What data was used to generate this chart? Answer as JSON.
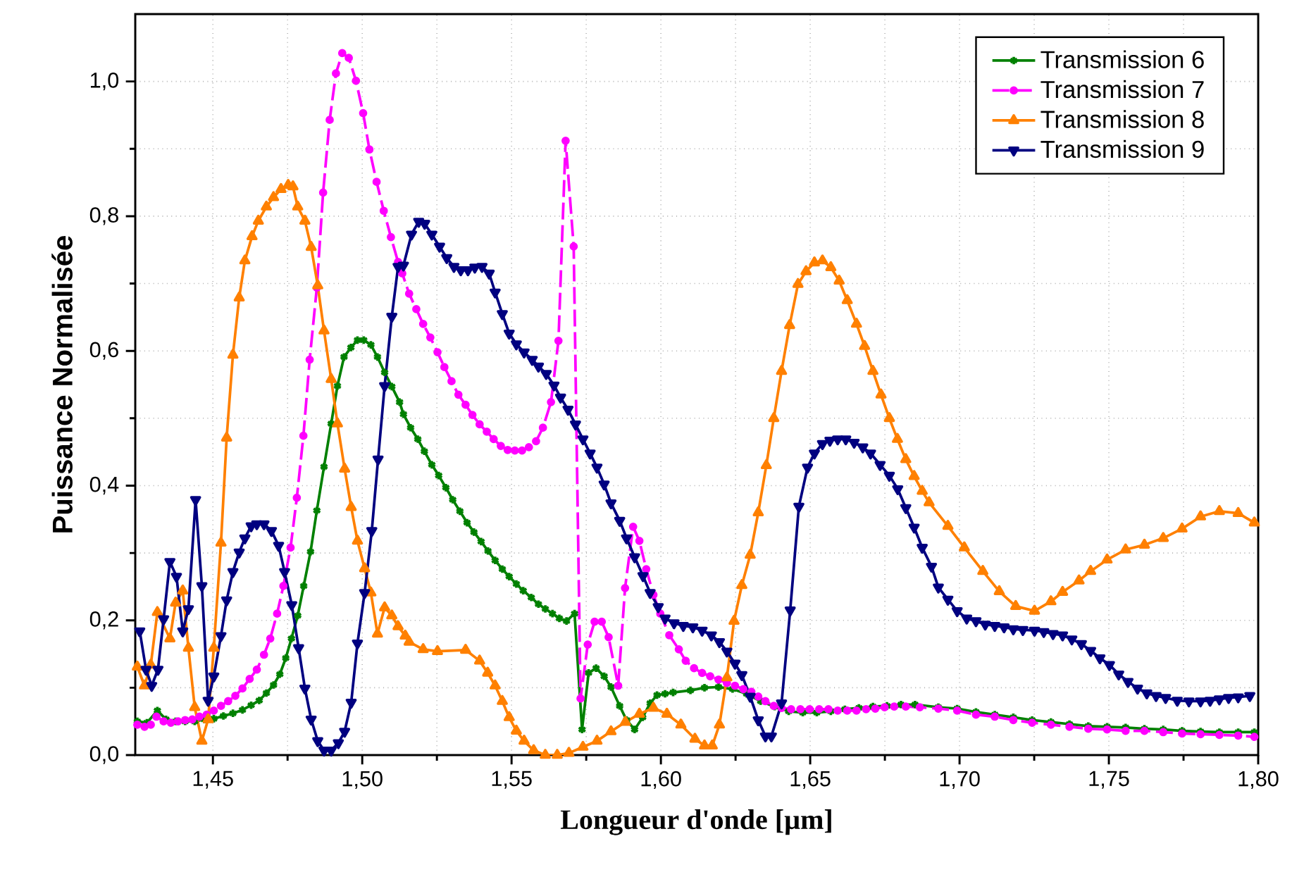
{
  "chart_data": {
    "type": "line",
    "xlabel": "Longueur d'onde [µm]",
    "ylabel": "Puissance Normalisée",
    "xlim": [
      1.424,
      1.8
    ],
    "ylim": [
      0,
      1.1
    ],
    "xticks": [
      {
        "value": 1.45,
        "label": "1,45"
      },
      {
        "value": 1.5,
        "label": "1,50"
      },
      {
        "value": 1.55,
        "label": "1,55"
      },
      {
        "value": 1.6,
        "label": "1,60"
      },
      {
        "value": 1.65,
        "label": "1,65"
      },
      {
        "value": 1.7,
        "label": "1,70"
      },
      {
        "value": 1.75,
        "label": "1,75"
      },
      {
        "value": 1.8,
        "label": "1,80"
      }
    ],
    "yticks": [
      {
        "value": 0,
        "label": "0,0"
      },
      {
        "value": 0.2,
        "label": "0,2"
      },
      {
        "value": 0.4,
        "label": "0,4"
      },
      {
        "value": 0.6,
        "label": "0,6"
      },
      {
        "value": 0.8,
        "label": "0,8"
      },
      {
        "value": 1.0,
        "label": "1,0"
      }
    ],
    "grid": true,
    "legend": "top right",
    "series": [
      {
        "name": "Transmission 6",
        "color": "#008000",
        "marker": "cross",
        "line_style": "solid",
        "x": [
          1.4247,
          1.4279,
          1.4314,
          1.4343,
          1.4375,
          1.4407,
          1.4439,
          1.4471,
          1.4503,
          1.4535,
          1.4567,
          1.4599,
          1.4628,
          1.4655,
          1.4679,
          1.4703,
          1.4724,
          1.4744,
          1.4763,
          1.4784,
          1.4804,
          1.4827,
          1.4848,
          1.4872,
          1.4896,
          1.4917,
          1.4939,
          1.4962,
          1.4984,
          1.5005,
          1.5029,
          1.5051,
          1.5075,
          1.5099,
          1.5125,
          1.5138,
          1.5162,
          1.5186,
          1.5208,
          1.5233,
          1.5256,
          1.528,
          1.5303,
          1.5327,
          1.5351,
          1.5374,
          1.5398,
          1.5421,
          1.5445,
          1.5469,
          1.5492,
          1.5516,
          1.5539,
          1.5566,
          1.559,
          1.5613,
          1.5637,
          1.566,
          1.5684,
          1.5711,
          1.5736,
          1.5758,
          1.5783,
          1.581,
          1.5833,
          1.5862,
          1.5885,
          1.5912,
          1.5939,
          1.5964,
          1.5987,
          1.6014,
          1.6041,
          1.6099,
          1.6146,
          1.6193,
          1.624,
          1.6287,
          1.6334,
          1.6381,
          1.6428,
          1.6475,
          1.6522,
          1.6569,
          1.6616,
          1.6663,
          1.671,
          1.6757,
          1.6804,
          1.6851,
          1.6929,
          1.6992,
          1.7055,
          1.7118,
          1.718,
          1.7243,
          1.7306,
          1.7368,
          1.7431,
          1.7494,
          1.7556,
          1.7619,
          1.7682,
          1.7745,
          1.7807,
          1.787,
          1.7933,
          1.7987
        ],
        "values": [
          0.05,
          0.048,
          0.066,
          0.053,
          0.05,
          0.05,
          0.05,
          0.053,
          0.054,
          0.058,
          0.062,
          0.067,
          0.074,
          0.081,
          0.092,
          0.104,
          0.12,
          0.144,
          0.173,
          0.207,
          0.251,
          0.302,
          0.363,
          0.428,
          0.492,
          0.548,
          0.591,
          0.605,
          0.616,
          0.616,
          0.609,
          0.591,
          0.568,
          0.547,
          0.524,
          0.506,
          0.486,
          0.469,
          0.451,
          0.431,
          0.415,
          0.397,
          0.379,
          0.362,
          0.345,
          0.331,
          0.317,
          0.303,
          0.289,
          0.276,
          0.265,
          0.254,
          0.244,
          0.234,
          0.224,
          0.217,
          0.21,
          0.203,
          0.199,
          0.21,
          0.038,
          0.122,
          0.129,
          0.117,
          0.101,
          0.073,
          0.052,
          0.038,
          0.056,
          0.077,
          0.089,
          0.091,
          0.093,
          0.096,
          0.1,
          0.101,
          0.098,
          0.091,
          0.08,
          0.072,
          0.065,
          0.063,
          0.063,
          0.065,
          0.068,
          0.07,
          0.072,
          0.073,
          0.075,
          0.075,
          0.071,
          0.069,
          0.064,
          0.06,
          0.056,
          0.052,
          0.049,
          0.046,
          0.043,
          0.042,
          0.041,
          0.039,
          0.038,
          0.036,
          0.035,
          0.034,
          0.034,
          0.034
        ]
      },
      {
        "name": "Transmission 7",
        "color": "#ff00ff",
        "marker": "circle",
        "line_style": "dashed",
        "x": [
          1.4247,
          1.4271,
          1.4292,
          1.4311,
          1.4335,
          1.4359,
          1.4383,
          1.4407,
          1.4431,
          1.4455,
          1.4479,
          1.4503,
          1.4527,
          1.4551,
          1.4575,
          1.4599,
          1.4623,
          1.4647,
          1.4671,
          1.4692,
          1.4715,
          1.4736,
          1.476,
          1.4781,
          1.4803,
          1.4824,
          1.4848,
          1.4869,
          1.4891,
          1.4912,
          1.4933,
          1.4955,
          1.4979,
          1.5003,
          1.5024,
          1.5048,
          1.5072,
          1.5096,
          1.512,
          1.5134,
          1.5157,
          1.5181,
          1.5204,
          1.5228,
          1.5252,
          1.5275,
          1.5299,
          1.5322,
          1.5346,
          1.5369,
          1.5393,
          1.5417,
          1.544,
          1.5464,
          1.5487,
          1.5511,
          1.5535,
          1.5558,
          1.5582,
          1.5605,
          1.5632,
          1.5657,
          1.5681,
          1.5708,
          1.5731,
          1.5755,
          1.5778,
          1.5802,
          1.5825,
          1.5857,
          1.588,
          1.5907,
          1.5928,
          1.5951,
          1.5975,
          1.5998,
          1.6028,
          1.606,
          1.6083,
          1.6111,
          1.6138,
          1.6165,
          1.6193,
          1.6221,
          1.6248,
          1.6276,
          1.6303,
          1.6326,
          1.635,
          1.6378,
          1.6404,
          1.6436,
          1.6467,
          1.6498,
          1.653,
          1.6561,
          1.6592,
          1.6624,
          1.6655,
          1.6687,
          1.6718,
          1.6749,
          1.6781,
          1.682,
          1.6867,
          1.6929,
          1.6992,
          1.7055,
          1.7118,
          1.718,
          1.7243,
          1.7306,
          1.7368,
          1.7431,
          1.7494,
          1.7556,
          1.7619,
          1.7682,
          1.7745,
          1.7807,
          1.787,
          1.7933,
          1.7987
        ],
        "values": [
          0.045,
          0.042,
          0.045,
          0.057,
          0.05,
          0.048,
          0.05,
          0.052,
          0.053,
          0.057,
          0.06,
          0.066,
          0.073,
          0.08,
          0.088,
          0.099,
          0.113,
          0.127,
          0.149,
          0.173,
          0.21,
          0.251,
          0.308,
          0.382,
          0.474,
          0.587,
          0.694,
          0.835,
          0.943,
          1.012,
          1.042,
          1.035,
          1.001,
          0.953,
          0.899,
          0.851,
          0.808,
          0.769,
          0.732,
          0.715,
          0.685,
          0.662,
          0.64,
          0.62,
          0.598,
          0.576,
          0.555,
          0.535,
          0.52,
          0.505,
          0.491,
          0.48,
          0.469,
          0.459,
          0.453,
          0.452,
          0.452,
          0.457,
          0.466,
          0.486,
          0.524,
          0.615,
          0.912,
          0.755,
          0.084,
          0.164,
          0.198,
          0.198,
          0.175,
          0.103,
          0.248,
          0.339,
          0.318,
          0.276,
          0.238,
          0.21,
          0.178,
          0.157,
          0.14,
          0.129,
          0.122,
          0.117,
          0.112,
          0.107,
          0.103,
          0.098,
          0.094,
          0.087,
          0.08,
          0.073,
          0.07,
          0.068,
          0.068,
          0.068,
          0.068,
          0.068,
          0.066,
          0.066,
          0.066,
          0.068,
          0.069,
          0.071,
          0.072,
          0.072,
          0.071,
          0.069,
          0.066,
          0.06,
          0.057,
          0.052,
          0.048,
          0.045,
          0.042,
          0.039,
          0.038,
          0.036,
          0.036,
          0.034,
          0.032,
          0.031,
          0.03,
          0.029,
          0.027
        ]
      },
      {
        "name": "Transmission 8",
        "color": "#ff8000",
        "marker": "triangle",
        "line_style": "solid",
        "x": [
          1.4247,
          1.4271,
          1.4292,
          1.4314,
          1.4356,
          1.4375,
          1.4399,
          1.4418,
          1.4439,
          1.4463,
          1.4484,
          1.4503,
          1.4527,
          1.4546,
          1.4567,
          1.4588,
          1.4607,
          1.4631,
          1.4652,
          1.4679,
          1.4703,
          1.4728,
          1.4752,
          1.4768,
          1.4784,
          1.4808,
          1.4829,
          1.4851,
          1.4872,
          1.4896,
          1.4917,
          1.4941,
          1.4963,
          1.4984,
          1.5008,
          1.5029,
          1.5051,
          1.5075,
          1.5099,
          1.512,
          1.5144,
          1.5157,
          1.5204,
          1.5252,
          1.5346,
          1.5393,
          1.542,
          1.5445,
          1.5469,
          1.5492,
          1.5516,
          1.5542,
          1.5574,
          1.5613,
          1.5653,
          1.5692,
          1.5739,
          1.5786,
          1.5833,
          1.5881,
          1.5928,
          1.5975,
          1.602,
          1.6067,
          1.6114,
          1.6146,
          1.6172,
          1.6196,
          1.6221,
          1.6245,
          1.6271,
          1.6299,
          1.6326,
          1.6353,
          1.6378,
          1.6404,
          1.6431,
          1.6459,
          1.6486,
          1.6514,
          1.6541,
          1.6569,
          1.6597,
          1.6624,
          1.6655,
          1.6682,
          1.671,
          1.6737,
          1.6765,
          1.6792,
          1.682,
          1.6848,
          1.6875,
          1.6898,
          1.6961,
          1.7016,
          1.7078,
          1.7133,
          1.7188,
          1.7251,
          1.7306,
          1.7345,
          1.74,
          1.7439,
          1.7494,
          1.7556,
          1.7619,
          1.7682,
          1.7745,
          1.7807,
          1.787,
          1.7933,
          1.7987
        ],
        "values": [
          0.131,
          0.103,
          0.134,
          0.212,
          0.173,
          0.226,
          0.244,
          0.159,
          0.071,
          0.021,
          0.053,
          0.159,
          0.315,
          0.471,
          0.594,
          0.679,
          0.734,
          0.77,
          0.793,
          0.814,
          0.828,
          0.84,
          0.846,
          0.844,
          0.814,
          0.793,
          0.754,
          0.697,
          0.63,
          0.558,
          0.492,
          0.425,
          0.368,
          0.318,
          0.277,
          0.241,
          0.18,
          0.219,
          0.207,
          0.191,
          0.177,
          0.168,
          0.157,
          0.154,
          0.156,
          0.14,
          0.122,
          0.103,
          0.08,
          0.056,
          0.036,
          0.021,
          0.007,
          0.0,
          0.0,
          0.003,
          0.012,
          0.021,
          0.035,
          0.049,
          0.061,
          0.07,
          0.061,
          0.045,
          0.024,
          0.014,
          0.014,
          0.045,
          0.115,
          0.199,
          0.252,
          0.297,
          0.36,
          0.43,
          0.5,
          0.57,
          0.638,
          0.699,
          0.718,
          0.731,
          0.734,
          0.724,
          0.704,
          0.675,
          0.64,
          0.607,
          0.57,
          0.535,
          0.5,
          0.469,
          0.439,
          0.414,
          0.392,
          0.375,
          0.34,
          0.308,
          0.273,
          0.243,
          0.221,
          0.214,
          0.228,
          0.242,
          0.259,
          0.273,
          0.29,
          0.305,
          0.312,
          0.322,
          0.336,
          0.354,
          0.362,
          0.359,
          0.345
        ]
      },
      {
        "name": "Transmission 9",
        "color": "#000080",
        "marker": "triangle-down",
        "line_style": "solid",
        "x": [
          1.4255,
          1.4276,
          1.4295,
          1.4316,
          1.4335,
          1.4356,
          1.4378,
          1.4399,
          1.4418,
          1.4442,
          1.4463,
          1.4484,
          1.4503,
          1.4527,
          1.4546,
          1.4567,
          1.4588,
          1.4607,
          1.4628,
          1.4647,
          1.4671,
          1.4696,
          1.472,
          1.474,
          1.4764,
          1.4787,
          1.4808,
          1.4829,
          1.4851,
          1.4872,
          1.4896,
          1.492,
          1.4941,
          1.4963,
          1.4984,
          1.5008,
          1.5032,
          1.5053,
          1.5075,
          1.5099,
          1.512,
          1.5138,
          1.5165,
          1.5189,
          1.5209,
          1.5233,
          1.5259,
          1.5283,
          1.5307,
          1.533,
          1.5354,
          1.5377,
          1.5401,
          1.5425,
          1.5445,
          1.5469,
          1.5492,
          1.5516,
          1.5542,
          1.5569,
          1.559,
          1.5616,
          1.5642,
          1.5664,
          1.5689,
          1.5714,
          1.5739,
          1.5763,
          1.5786,
          1.581,
          1.5833,
          1.5862,
          1.5885,
          1.5912,
          1.594,
          1.5964,
          1.5991,
          1.6014,
          1.6044,
          1.6075,
          1.6107,
          1.6138,
          1.6169,
          1.6196,
          1.6221,
          1.6248,
          1.6271,
          1.6299,
          1.6326,
          1.635,
          1.637,
          1.6404,
          1.6433,
          1.6462,
          1.6491,
          1.6514,
          1.6541,
          1.6566,
          1.6592,
          1.6619,
          1.6647,
          1.6676,
          1.6702,
          1.6734,
          1.6765,
          1.6793,
          1.682,
          1.6848,
          1.6875,
          1.6906,
          1.6929,
          1.6961,
          1.6992,
          1.7024,
          1.7055,
          1.7086,
          1.7118,
          1.7149,
          1.718,
          1.7212,
          1.7251,
          1.7282,
          1.7313,
          1.7345,
          1.7376,
          1.7408,
          1.7439,
          1.747,
          1.7502,
          1.7533,
          1.7564,
          1.7596,
          1.7627,
          1.7658,
          1.769,
          1.7729,
          1.7768,
          1.7807,
          1.7839,
          1.787,
          1.7901,
          1.7933,
          1.7972
        ],
        "values": [
          0.184,
          0.127,
          0.103,
          0.127,
          0.202,
          0.287,
          0.265,
          0.184,
          0.217,
          0.379,
          0.251,
          0.081,
          0.117,
          0.177,
          0.23,
          0.272,
          0.301,
          0.322,
          0.34,
          0.343,
          0.343,
          0.333,
          0.311,
          0.272,
          0.223,
          0.159,
          0.099,
          0.053,
          0.021,
          0.007,
          0.007,
          0.018,
          0.035,
          0.078,
          0.166,
          0.241,
          0.333,
          0.439,
          0.548,
          0.651,
          0.725,
          0.727,
          0.773,
          0.792,
          0.789,
          0.773,
          0.755,
          0.738,
          0.725,
          0.72,
          0.72,
          0.724,
          0.725,
          0.715,
          0.687,
          0.655,
          0.626,
          0.61,
          0.598,
          0.587,
          0.577,
          0.566,
          0.549,
          0.531,
          0.513,
          0.491,
          0.469,
          0.448,
          0.427,
          0.402,
          0.374,
          0.348,
          0.322,
          0.294,
          0.266,
          0.241,
          0.22,
          0.203,
          0.196,
          0.192,
          0.19,
          0.185,
          0.178,
          0.168,
          0.154,
          0.136,
          0.119,
          0.087,
          0.052,
          0.028,
          0.028,
          0.077,
          0.215,
          0.369,
          0.427,
          0.448,
          0.462,
          0.467,
          0.469,
          0.469,
          0.464,
          0.457,
          0.448,
          0.431,
          0.415,
          0.395,
          0.367,
          0.338,
          0.308,
          0.28,
          0.249,
          0.231,
          0.214,
          0.203,
          0.199,
          0.194,
          0.192,
          0.19,
          0.187,
          0.186,
          0.185,
          0.183,
          0.18,
          0.178,
          0.172,
          0.165,
          0.155,
          0.144,
          0.134,
          0.12,
          0.109,
          0.099,
          0.092,
          0.088,
          0.085,
          0.081,
          0.08,
          0.08,
          0.081,
          0.083,
          0.085,
          0.086,
          0.088
        ]
      }
    ]
  }
}
